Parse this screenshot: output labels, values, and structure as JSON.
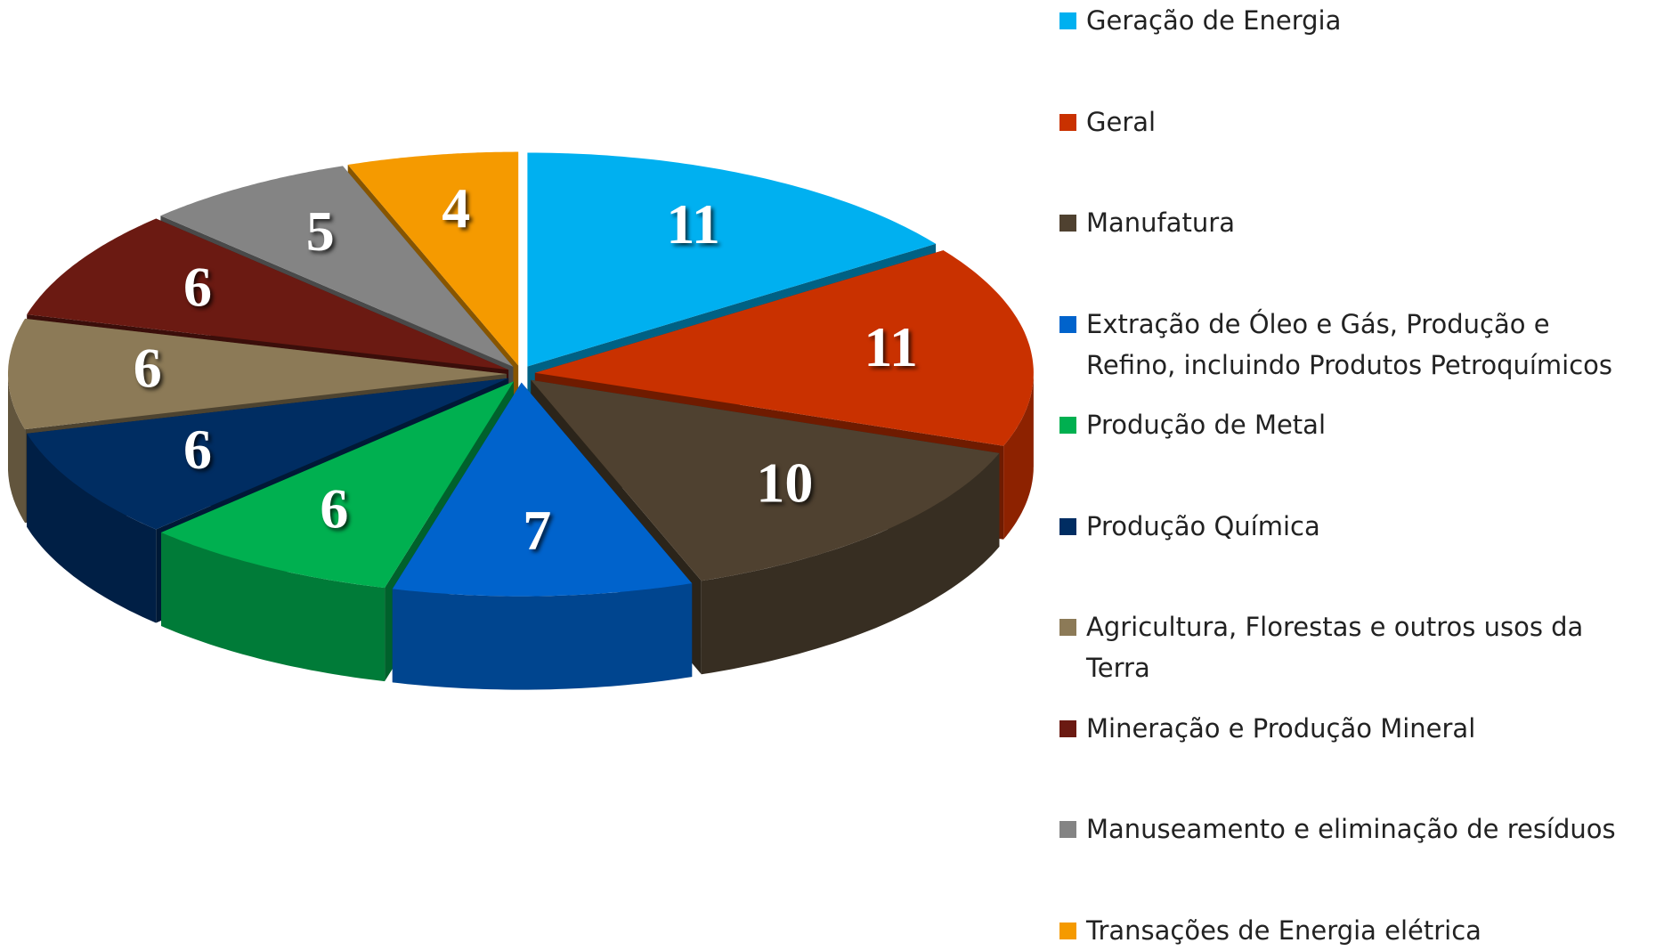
{
  "chart_data": {
    "type": "pie3d",
    "categories": [
      "Geração de Energia",
      "Geral",
      "Manufatura",
      "Extração de Óleo e Gás,  Produção e Refino,  incluindo Produtos Petroquímicos",
      "Produção de Metal",
      "Produção Química",
      "Agricultura,  Florestas e outros usos da Terra",
      "Mineração e Produção Mineral",
      "Manuseamento e eliminação de resíduos",
      "Transações de Energia elétrica"
    ],
    "values": [
      11,
      11,
      10,
      7,
      6,
      6,
      6,
      6,
      5,
      4
    ],
    "colors": [
      "#00b0f0",
      "#c93100",
      "#4f4130",
      "#0063cc",
      "#00b050",
      "#002d62",
      "#8c7a57",
      "#6b1a12",
      "#848484",
      "#f59a00"
    ],
    "legend": "right"
  }
}
